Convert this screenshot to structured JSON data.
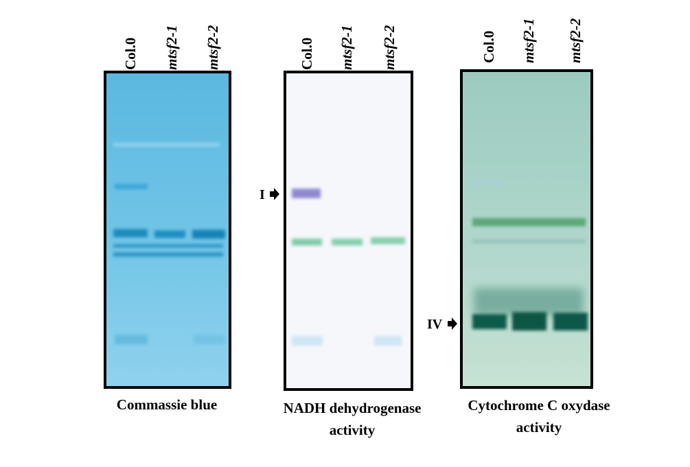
{
  "panels": [
    {
      "lanes": [
        "Col.0",
        "mtsf2-1",
        "mtsf2-2"
      ],
      "caption": [
        "Commassie blue"
      ]
    },
    {
      "lanes": [
        "Col.0",
        "mtsf2-1",
        "mtsf2-2"
      ],
      "caption": [
        "NADH dehydrogenase",
        "activity"
      ],
      "marker": "I"
    },
    {
      "lanes": [
        "Col.0",
        "mtsf2-1",
        "mtsf2-2"
      ],
      "caption": [
        "Cytochrome C oxydase",
        "activity"
      ],
      "marker": "IV"
    }
  ]
}
